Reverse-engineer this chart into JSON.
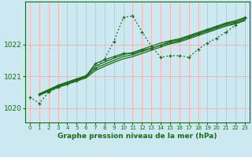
{
  "title": "Graphe pression niveau de la mer (hPa)",
  "bg_color": "#cce8f0",
  "grid_color": "#ffaaaa",
  "line_color": "#1a6b1a",
  "xlim": [
    -0.5,
    23.5
  ],
  "ylim": [
    1019.55,
    1023.35
  ],
  "yticks": [
    1020,
    1021,
    1022
  ],
  "xticks": [
    0,
    1,
    2,
    3,
    4,
    5,
    6,
    7,
    8,
    9,
    10,
    11,
    12,
    13,
    14,
    15,
    16,
    17,
    18,
    19,
    20,
    21,
    22,
    23
  ],
  "lines": [
    {
      "x": [
        0,
        1,
        2,
        3,
        4,
        5,
        6,
        7,
        8,
        9,
        10,
        11,
        12,
        13,
        14,
        15,
        16,
        17,
        18,
        19,
        20,
        21,
        22,
        23
      ],
      "y": [
        1020.35,
        1020.15,
        1020.5,
        1020.65,
        1020.75,
        1020.85,
        1021.0,
        1021.25,
        1021.55,
        1022.1,
        1022.85,
        1022.9,
        1022.4,
        1021.95,
        1021.6,
        1021.65,
        1021.65,
        1021.6,
        1021.85,
        1022.05,
        1022.2,
        1022.4,
        1022.6,
        1022.85
      ],
      "style": "dotted",
      "marker": true
    },
    {
      "x": [
        1,
        2,
        3,
        4,
        5,
        6,
        7,
        8,
        9,
        10,
        11,
        12,
        13,
        14,
        15,
        16,
        17,
        18,
        19,
        20,
        21,
        22,
        23
      ],
      "y": [
        1020.45,
        1020.58,
        1020.72,
        1020.82,
        1020.92,
        1021.02,
        1021.32,
        1021.45,
        1021.57,
        1021.68,
        1021.75,
        1021.85,
        1021.95,
        1022.05,
        1022.12,
        1022.18,
        1022.28,
        1022.38,
        1022.48,
        1022.58,
        1022.68,
        1022.75,
        1022.85
      ],
      "style": "solid",
      "marker": false
    },
    {
      "x": [
        1,
        2,
        3,
        4,
        5,
        6,
        7,
        8,
        9,
        10,
        11,
        12,
        13,
        14,
        15,
        16,
        17,
        18,
        19,
        20,
        21,
        22,
        23
      ],
      "y": [
        1020.42,
        1020.55,
        1020.68,
        1020.78,
        1020.88,
        1020.98,
        1021.25,
        1021.38,
        1021.5,
        1021.62,
        1021.68,
        1021.78,
        1021.88,
        1021.98,
        1022.05,
        1022.12,
        1022.22,
        1022.32,
        1022.42,
        1022.52,
        1022.62,
        1022.68,
        1022.78
      ],
      "style": "solid",
      "marker": false
    },
    {
      "x": [
        1,
        2,
        3,
        4,
        5,
        6,
        7,
        8,
        9,
        10,
        11,
        12,
        13,
        14,
        15,
        16,
        17,
        18,
        19,
        20,
        21,
        22,
        23
      ],
      "y": [
        1020.44,
        1020.57,
        1020.7,
        1020.8,
        1020.9,
        1021.0,
        1021.4,
        1021.52,
        1021.62,
        1021.72,
        1021.72,
        1021.82,
        1021.88,
        1021.98,
        1022.1,
        1022.15,
        1022.25,
        1022.35,
        1022.45,
        1022.55,
        1022.65,
        1022.72,
        1022.82
      ],
      "style": "solid",
      "marker": true
    },
    {
      "x": [
        1,
        2,
        3,
        4,
        5,
        6,
        7,
        8,
        9,
        10,
        11,
        12,
        13,
        14,
        15,
        16,
        17,
        18,
        19,
        20,
        21,
        22,
        23
      ],
      "y": [
        1020.4,
        1020.53,
        1020.65,
        1020.75,
        1020.85,
        1020.95,
        1021.18,
        1021.32,
        1021.44,
        1021.55,
        1021.62,
        1021.72,
        1021.82,
        1021.92,
        1022.02,
        1022.08,
        1022.18,
        1022.28,
        1022.38,
        1022.48,
        1022.58,
        1022.65,
        1022.75
      ],
      "style": "solid",
      "marker": false
    }
  ]
}
